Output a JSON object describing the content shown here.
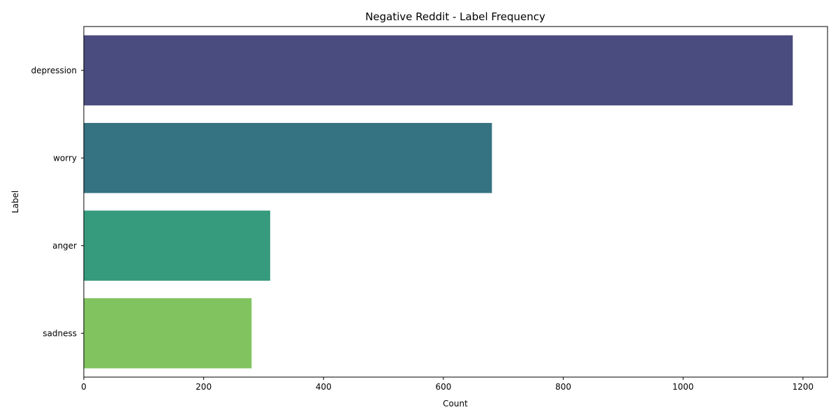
{
  "chart_data": {
    "type": "bar",
    "orientation": "horizontal",
    "title": "Negative Reddit - Label Frequency",
    "xlabel": "Count",
    "ylabel": "Label",
    "categories": [
      "depression",
      "worry",
      "anger",
      "sadness"
    ],
    "values": [
      1183,
      681,
      311,
      280
    ],
    "colors": [
      "#4a4c80",
      "#357282",
      "#369a7c",
      "#80c35f"
    ],
    "xlim": [
      0,
      1241
    ],
    "xticks": [
      0,
      200,
      400,
      600,
      800,
      1000,
      1200
    ],
    "grid": false,
    "legend": "none"
  }
}
